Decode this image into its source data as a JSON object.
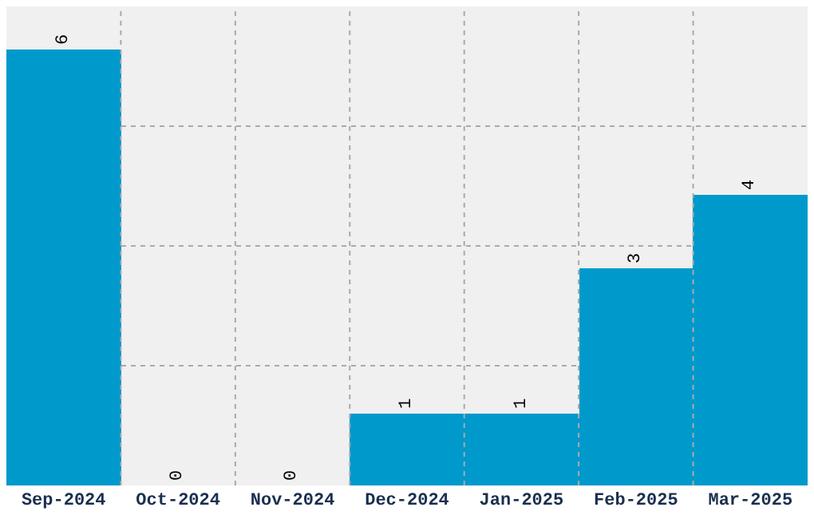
{
  "chart_data": {
    "type": "bar",
    "categories": [
      "Sep-2024",
      "Oct-2024",
      "Nov-2024",
      "Dec-2024",
      "Jan-2025",
      "Feb-2025",
      "Mar-2025"
    ],
    "values": [
      6,
      0,
      0,
      1,
      1,
      3,
      4
    ],
    "color": "#0099cc",
    "data_labels": true,
    "grid": true,
    "tick_labels": "x",
    "ylim": [
      0,
      6.6
    ],
    "yticks": [
      {
        "value": 0,
        "label": null
      },
      {
        "value": 1.65,
        "label": null
      },
      {
        "value": 3.3,
        "label": null
      },
      {
        "value": 4.95,
        "label": null
      },
      {
        "value": 6.6,
        "label": null
      }
    ]
  }
}
